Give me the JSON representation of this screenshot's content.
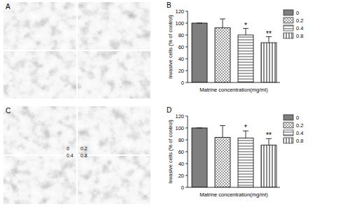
{
  "images": [
    {
      "label": "A"
    },
    {
      "label": "C",
      "labels": [
        "0",
        "0.2",
        "0.4",
        "0.8"
      ]
    }
  ],
  "chart_data": [
    {
      "type": "bar",
      "title": "B",
      "categories": [
        "0",
        "0.2",
        "0.4",
        "0.8"
      ],
      "values": [
        100,
        92,
        80,
        67
      ],
      "errors": [
        0,
        15,
        11,
        10
      ],
      "colors": [
        "#7f7f7f",
        "#9a9a9a",
        "#a8a8a8",
        "#8c8c8c"
      ],
      "ylim": [
        0,
        120
      ],
      "yticks": [
        0,
        20,
        40,
        60,
        80,
        100,
        120
      ],
      "y_label": "Invasive cells (% of control)",
      "x_label": "Matrine concentration(mg/ml)",
      "annotations": [
        {
          "text": "*",
          "category": "0.4"
        },
        {
          "text": "**",
          "category": "0.8"
        }
      ],
      "legend": "top-right",
      "tick_labels": "y",
      "grid": false
    },
    {
      "type": "bar",
      "title": "D",
      "categories": [
        "0",
        "0.2",
        "0.4",
        "0.8"
      ],
      "values": [
        100,
        84,
        83,
        71
      ],
      "errors": [
        0,
        20,
        12,
        11
      ],
      "colors": [
        "#7f7f7f",
        "#9a9a9a",
        "#a8a8a8",
        "#8c8c8c"
      ],
      "ylim": [
        0,
        120
      ],
      "yticks": [
        0,
        20,
        40,
        60,
        80,
        100,
        120
      ],
      "y_label": "Invasive cells (% of control)",
      "x_label": "Matrine concentration(mg/ml)",
      "annotations": [
        {
          "text": "*",
          "category": "0.4"
        },
        {
          "text": "**",
          "category": "0.8"
        }
      ],
      "legend": "top-right",
      "tick_labels": "y",
      "grid": false
    }
  ]
}
